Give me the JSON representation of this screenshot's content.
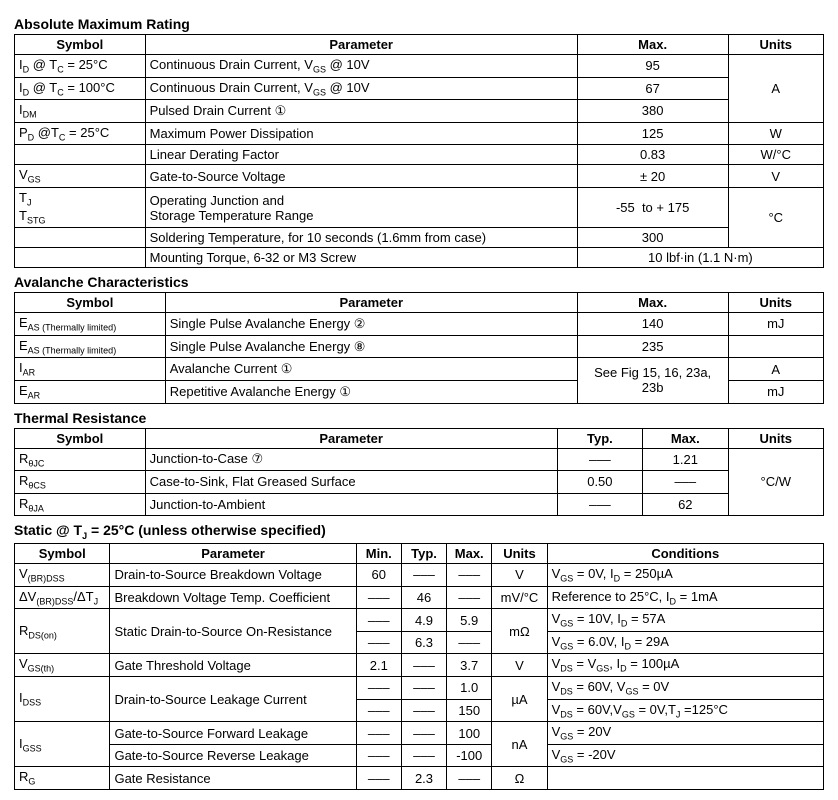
{
  "sections": {
    "amr": {
      "title": "Absolute Maximum Rating",
      "headers": [
        "Symbol",
        "Parameter",
        "Max.",
        "Units"
      ],
      "rows": [
        {
          "sym": "I<sub>D</sub> @ T<sub>C</sub> = 25°C",
          "param": "Continuous Drain Current, V<sub>GS</sub> @ 10V",
          "max": "95",
          "units": "A",
          "units_span": 3
        },
        {
          "sym": "I<sub>D</sub> @ T<sub>C</sub> = 100°C",
          "param": "Continuous Drain Current, V<sub>GS</sub> @ 10V",
          "max": "67"
        },
        {
          "sym": "I<sub>DM</sub>",
          "param": "Pulsed Drain Current ①",
          "max": "380"
        },
        {
          "sym": "P<sub>D</sub> @T<sub>C</sub> = 25°C",
          "param": "Maximum Power Dissipation",
          "max": "125",
          "units": "W"
        },
        {
          "sym": "",
          "param": "Linear Derating Factor",
          "max": "0.83",
          "units": "W/°C"
        },
        {
          "sym": "V<sub>GS</sub>",
          "param": "Gate-to-Source Voltage",
          "max": "± 20",
          "units": "V"
        },
        {
          "sym": "T<sub>J</sub><br>T<sub>STG</sub>",
          "param": "Operating Junction and<br>Storage Temperature Range",
          "max": "-55&nbsp;&nbsp;to + 175",
          "units": "°C",
          "units_span": 2
        },
        {
          "sym": "",
          "param": "Soldering Temperature, for 10 seconds (1.6mm from case)",
          "max": "300"
        },
        {
          "sym": "",
          "param": "Mounting Torque, 6-32 or M3 Screw",
          "max": "10 lbf·in (1.1 N·m)",
          "max_span": 2
        }
      ],
      "col_widths": [
        "130",
        "430",
        "150",
        "95"
      ]
    },
    "av": {
      "title": "Avalanche Characteristics",
      "headers": [
        "Symbol",
        "Parameter",
        "Max.",
        "Units"
      ],
      "rows": [
        {
          "sym": "E<sub>AS (Thermally limited)</sub>",
          "param": "Single Pulse Avalanche Energy ②",
          "max": "140",
          "units": "mJ"
        },
        {
          "sym": "E<sub>AS (Thermally limited)</sub>",
          "param": "Single Pulse Avalanche Energy  ⑧",
          "max": "235",
          "units": ""
        },
        {
          "sym": "I<sub>AR</sub>",
          "param": "Avalanche Current ①",
          "max": "See Fig 15, 16, 23a, 23b",
          "max_span_rows": 2,
          "units": "A"
        },
        {
          "sym": "E<sub>AR</sub>",
          "param": "Repetitive Avalanche Energy ①",
          "units": "mJ"
        }
      ],
      "col_widths": [
        "150",
        "410",
        "150",
        "95"
      ]
    },
    "tr": {
      "title": "Thermal Resistance",
      "headers": [
        "Symbol",
        "Parameter",
        "Typ.",
        "Max.",
        "Units"
      ],
      "rows": [
        {
          "sym": "R<sub>θJC</sub>",
          "param": "Junction-to-Case ⑦",
          "typ": "–––",
          "max": "1.21",
          "units": "°C/W",
          "units_span": 3
        },
        {
          "sym": "R<sub>θCS</sub>",
          "param": "Case-to-Sink, Flat Greased Surface",
          "typ": "0.50",
          "max": "–––"
        },
        {
          "sym": "R<sub>θJA</sub>",
          "param": "Junction-to-Ambient",
          "typ": "–––",
          "max": "62"
        }
      ],
      "col_widths": [
        "130",
        "410",
        "85",
        "85",
        "95"
      ]
    },
    "static": {
      "title": "Static @ T<sub>J</sub> = 25°C (unless otherwise specified)",
      "headers": [
        "Symbol",
        "Parameter",
        "Min.",
        "Typ.",
        "Max.",
        "Units",
        "Conditions"
      ],
      "rows": [
        {
          "sym": "V<sub>(BR)DSS</sub>",
          "param": "Drain-to-Source Breakdown Voltage",
          "min": "60",
          "typ": "–––",
          "max": "–––",
          "units": "V",
          "cond": "V<sub>GS</sub> = 0V, I<sub>D</sub> = 250µA"
        },
        {
          "sym": "ΔV<sub>(BR)DSS</sub>/ΔT<sub>J</sub>",
          "param": "Breakdown Voltage Temp. Coefficient",
          "min": "–––",
          "typ": "46",
          "max": "–––",
          "units": "mV/°C",
          "cond": "Reference to 25°C, I<sub>D</sub> = 1mA"
        },
        {
          "sym": "R<sub>DS(on)</sub>",
          "sym_span": 2,
          "param": "Static Drain-to-Source On-Resistance",
          "param_span": 2,
          "min": "–––",
          "typ": "4.9",
          "max": "5.9",
          "units": "mΩ",
          "units_span": 2,
          "cond": "V<sub>GS</sub> = 10V, I<sub>D</sub> = 57A"
        },
        {
          "min": "–––",
          "typ": "6.3",
          "max": "–––",
          "cond": "V<sub>GS</sub> = 6.0V, I<sub>D</sub> = 29A"
        },
        {
          "sym": "V<sub>GS(th)</sub>",
          "param": "Gate Threshold Voltage",
          "min": "2.1",
          "typ": "–––",
          "max": "3.7",
          "units": "V",
          "cond": "V<sub>DS</sub> = V<sub>GS</sub>, I<sub>D</sub> = 100µA"
        },
        {
          "sym": "I<sub>DSS</sub>",
          "sym_span": 2,
          "param": "Drain-to-Source Leakage Current",
          "param_span": 2,
          "min": "–––",
          "typ": "–––",
          "max": "1.0",
          "units": "µA",
          "units_span": 2,
          "cond": "V<sub>DS</sub> = 60V, V<sub>GS</sub> = 0V"
        },
        {
          "min": "–––",
          "typ": "–––",
          "max": "150",
          "cond": "V<sub>DS</sub> = 60V,V<sub>GS</sub> = 0V,T<sub>J</sub> =125°C"
        },
        {
          "sym": "I<sub>GSS</sub>",
          "sym_span": 2,
          "param": "Gate-to-Source Forward Leakage",
          "min": "–––",
          "typ": "–––",
          "max": "100",
          "units": "nA",
          "units_span": 2,
          "cond": "V<sub>GS</sub> = 20V"
        },
        {
          "param": "Gate-to-Source Reverse Leakage",
          "min": "–––",
          "typ": "–––",
          "max": "-100",
          "cond": "V<sub>GS</sub> = -20V"
        },
        {
          "sym": "R<sub>G</sub>",
          "param": "Gate Resistance",
          "min": "–––",
          "typ": "2.3",
          "max": "–––",
          "units": "Ω",
          "cond": ""
        }
      ],
      "col_widths": [
        "95",
        "245",
        "45",
        "45",
        "45",
        "55",
        "275"
      ]
    }
  }
}
